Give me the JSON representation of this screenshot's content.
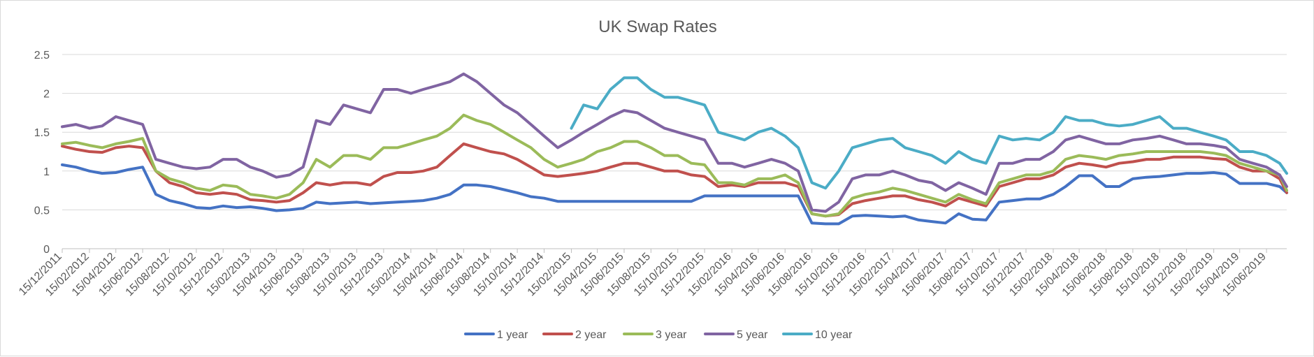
{
  "chart_data": {
    "type": "line",
    "title": "UK Swap Rates",
    "xlabel": "",
    "ylabel": "",
    "ylim": [
      0,
      2.5
    ],
    "yticks": [
      "0",
      "0.5",
      "1",
      "1.5",
      "2",
      "2.5"
    ],
    "xlim": [
      "15/12/2011",
      "31/07/2019"
    ],
    "x_tick_labels": [
      "15/12/2011",
      "15/02/2012",
      "15/04/2012",
      "15/06/2012",
      "15/08/2012",
      "15/10/2012",
      "15/12/2012",
      "15/02/2013",
      "15/04/2013",
      "15/06/2013",
      "15/08/2013",
      "15/10/2013",
      "15/12/2013",
      "15/02/2014",
      "15/04/2014",
      "15/06/2014",
      "15/08/2014",
      "15/10/2014",
      "15/12/2014",
      "15/02/2015",
      "15/04/2015",
      "15/06/2015",
      "15/08/2015",
      "15/10/2015",
      "15/12/2015",
      "15/02/2016",
      "15/04/2016",
      "15/06/2016",
      "15/08/2016",
      "15/10/2016",
      "15/12/2016",
      "15/02/2017",
      "15/04/2017",
      "15/06/2017",
      "15/08/2017",
      "15/10/2017",
      "15/12/2017",
      "15/02/2018",
      "15/04/2018",
      "15/06/2018",
      "15/08/2018",
      "15/10/2018",
      "15/12/2018",
      "15/02/2019",
      "15/04/2019",
      "15/06/2019"
    ],
    "grid": "horizontal",
    "legend_position": "bottom",
    "x": [
      "15/12/2011",
      "15/01/2012",
      "15/02/2012",
      "15/03/2012",
      "15/04/2012",
      "15/05/2012",
      "15/06/2012",
      "15/07/2012",
      "15/08/2012",
      "15/09/2012",
      "15/10/2012",
      "15/11/2012",
      "15/12/2012",
      "15/01/2013",
      "15/02/2013",
      "15/03/2013",
      "15/04/2013",
      "15/05/2013",
      "15/06/2013",
      "15/07/2013",
      "15/08/2013",
      "15/09/2013",
      "15/10/2013",
      "15/11/2013",
      "15/12/2013",
      "15/01/2014",
      "15/02/2014",
      "15/03/2014",
      "15/04/2014",
      "15/05/2014",
      "15/06/2014",
      "15/07/2014",
      "15/08/2014",
      "15/09/2014",
      "15/10/2014",
      "15/11/2014",
      "15/12/2014",
      "15/01/2015",
      "15/02/2015",
      "15/03/2015",
      "15/04/2015",
      "15/05/2015",
      "15/06/2015",
      "15/07/2015",
      "15/08/2015",
      "15/09/2015",
      "15/10/2015",
      "15/11/2015",
      "15/12/2015",
      "15/01/2016",
      "15/02/2016",
      "15/03/2016",
      "15/04/2016",
      "15/05/2016",
      "15/06/2016",
      "15/07/2016",
      "15/08/2016",
      "15/09/2016",
      "15/10/2016",
      "15/11/2016",
      "15/12/2016",
      "15/01/2017",
      "15/02/2017",
      "15/03/2017",
      "15/04/2017",
      "15/05/2017",
      "15/06/2017",
      "15/07/2017",
      "15/08/2017",
      "15/09/2017",
      "15/10/2017",
      "15/11/2017",
      "15/12/2017",
      "15/01/2018",
      "15/02/2018",
      "15/03/2018",
      "15/04/2018",
      "15/05/2018",
      "15/06/2018",
      "15/07/2018",
      "15/08/2018",
      "15/09/2018",
      "15/10/2018",
      "15/11/2018",
      "15/12/2018",
      "15/01/2019",
      "15/02/2019",
      "15/03/2019",
      "15/04/2019",
      "15/05/2019",
      "15/06/2019",
      "15/07/2019",
      "31/07/2019"
    ],
    "series": [
      {
        "name": "1 year",
        "color": "#4472C4",
        "values": [
          1.08,
          1.05,
          1.0,
          0.97,
          0.98,
          1.02,
          1.05,
          0.7,
          0.62,
          0.58,
          0.53,
          0.52,
          0.55,
          0.53,
          0.54,
          0.52,
          0.49,
          0.5,
          0.52,
          0.6,
          0.58,
          0.59,
          0.6,
          0.58,
          0.59,
          0.6,
          0.61,
          0.62,
          0.65,
          0.7,
          0.82,
          0.82,
          0.8,
          0.76,
          0.72,
          0.67,
          0.65,
          0.61,
          0.61,
          0.61,
          0.61,
          0.61,
          0.61,
          0.61,
          0.61,
          0.61,
          0.61,
          0.61,
          0.68,
          0.68,
          0.68,
          0.68,
          0.68,
          0.68,
          0.68,
          0.68,
          0.33,
          0.32,
          0.32,
          0.42,
          0.43,
          0.42,
          0.41,
          0.42,
          0.37,
          0.35,
          0.33,
          0.45,
          0.38,
          0.37,
          0.6,
          0.62,
          0.64,
          0.64,
          0.7,
          0.8,
          0.94,
          0.94,
          0.8,
          0.8,
          0.9,
          0.92,
          0.93,
          0.95,
          0.97,
          0.97,
          0.98,
          0.96,
          0.84,
          0.84,
          0.84,
          0.8,
          0.72
        ]
      },
      {
        "name": "2 year",
        "color": "#C0504D",
        "values": [
          1.32,
          1.28,
          1.25,
          1.24,
          1.3,
          1.32,
          1.3,
          1.0,
          0.85,
          0.8,
          0.72,
          0.7,
          0.72,
          0.7,
          0.63,
          0.62,
          0.6,
          0.62,
          0.72,
          0.85,
          0.82,
          0.85,
          0.85,
          0.82,
          0.93,
          0.98,
          0.98,
          1.0,
          1.05,
          1.2,
          1.35,
          1.3,
          1.25,
          1.22,
          1.15,
          1.05,
          0.95,
          0.93,
          0.95,
          0.97,
          1.0,
          1.05,
          1.1,
          1.1,
          1.05,
          1.0,
          1.0,
          0.95,
          0.93,
          0.8,
          0.82,
          0.8,
          0.85,
          0.85,
          0.85,
          0.8,
          0.45,
          0.42,
          0.44,
          0.58,
          0.62,
          0.65,
          0.68,
          0.68,
          0.63,
          0.6,
          0.55,
          0.65,
          0.6,
          0.55,
          0.8,
          0.85,
          0.9,
          0.9,
          0.95,
          1.05,
          1.1,
          1.08,
          1.05,
          1.1,
          1.12,
          1.15,
          1.15,
          1.18,
          1.18,
          1.18,
          1.16,
          1.15,
          1.05,
          1.0,
          1.0,
          0.9,
          0.72
        ]
      },
      {
        "name": "3 year",
        "color": "#9BBB59",
        "values": [
          1.35,
          1.37,
          1.33,
          1.3,
          1.35,
          1.38,
          1.42,
          1.0,
          0.9,
          0.85,
          0.78,
          0.75,
          0.82,
          0.8,
          0.7,
          0.68,
          0.65,
          0.7,
          0.85,
          1.15,
          1.05,
          1.2,
          1.2,
          1.15,
          1.3,
          1.3,
          1.35,
          1.4,
          1.45,
          1.55,
          1.72,
          1.65,
          1.6,
          1.5,
          1.4,
          1.3,
          1.15,
          1.05,
          1.1,
          1.15,
          1.25,
          1.3,
          1.38,
          1.38,
          1.3,
          1.2,
          1.2,
          1.1,
          1.08,
          0.85,
          0.85,
          0.82,
          0.9,
          0.9,
          0.95,
          0.85,
          0.45,
          0.42,
          0.45,
          0.65,
          0.7,
          0.73,
          0.78,
          0.75,
          0.7,
          0.65,
          0.6,
          0.7,
          0.63,
          0.58,
          0.85,
          0.9,
          0.95,
          0.95,
          1.0,
          1.15,
          1.2,
          1.18,
          1.15,
          1.2,
          1.22,
          1.25,
          1.25,
          1.25,
          1.25,
          1.25,
          1.23,
          1.2,
          1.1,
          1.05,
          1.0,
          0.95,
          0.75
        ]
      },
      {
        "name": "5 year",
        "color": "#8064A2",
        "values": [
          1.57,
          1.6,
          1.55,
          1.58,
          1.7,
          1.65,
          1.6,
          1.15,
          1.1,
          1.05,
          1.03,
          1.05,
          1.15,
          1.15,
          1.05,
          1.0,
          0.92,
          0.95,
          1.05,
          1.65,
          1.6,
          1.85,
          1.8,
          1.75,
          2.05,
          2.05,
          2.0,
          2.05,
          2.1,
          2.15,
          2.25,
          2.15,
          2.0,
          1.85,
          1.75,
          1.6,
          1.45,
          1.3,
          1.4,
          1.5,
          1.6,
          1.7,
          1.78,
          1.75,
          1.65,
          1.55,
          1.5,
          1.45,
          1.4,
          1.1,
          1.1,
          1.05,
          1.1,
          1.15,
          1.1,
          1.0,
          0.5,
          0.48,
          0.6,
          0.9,
          0.95,
          0.95,
          1.0,
          0.95,
          0.88,
          0.85,
          0.75,
          0.85,
          0.78,
          0.7,
          1.1,
          1.1,
          1.15,
          1.15,
          1.25,
          1.4,
          1.45,
          1.4,
          1.35,
          1.35,
          1.4,
          1.42,
          1.45,
          1.4,
          1.35,
          1.35,
          1.33,
          1.3,
          1.15,
          1.1,
          1.05,
          0.95,
          0.8
        ]
      },
      {
        "name": "10 year",
        "color": "#4BACC6",
        "values": [
          null,
          null,
          null,
          null,
          null,
          null,
          null,
          null,
          null,
          null,
          null,
          null,
          null,
          null,
          null,
          null,
          null,
          null,
          null,
          null,
          null,
          null,
          null,
          null,
          null,
          null,
          null,
          null,
          null,
          null,
          null,
          null,
          null,
          null,
          null,
          null,
          null,
          null,
          1.55,
          1.85,
          1.8,
          2.05,
          2.2,
          2.2,
          2.05,
          1.95,
          1.95,
          1.9,
          1.85,
          1.5,
          1.45,
          1.4,
          1.5,
          1.55,
          1.45,
          1.3,
          0.85,
          0.78,
          1.0,
          1.3,
          1.35,
          1.4,
          1.42,
          1.3,
          1.25,
          1.2,
          1.1,
          1.25,
          1.15,
          1.1,
          1.45,
          1.4,
          1.42,
          1.4,
          1.5,
          1.7,
          1.65,
          1.65,
          1.6,
          1.58,
          1.6,
          1.65,
          1.7,
          1.55,
          1.55,
          1.5,
          1.45,
          1.4,
          1.25,
          1.25,
          1.2,
          1.1,
          0.97
        ]
      }
    ]
  }
}
